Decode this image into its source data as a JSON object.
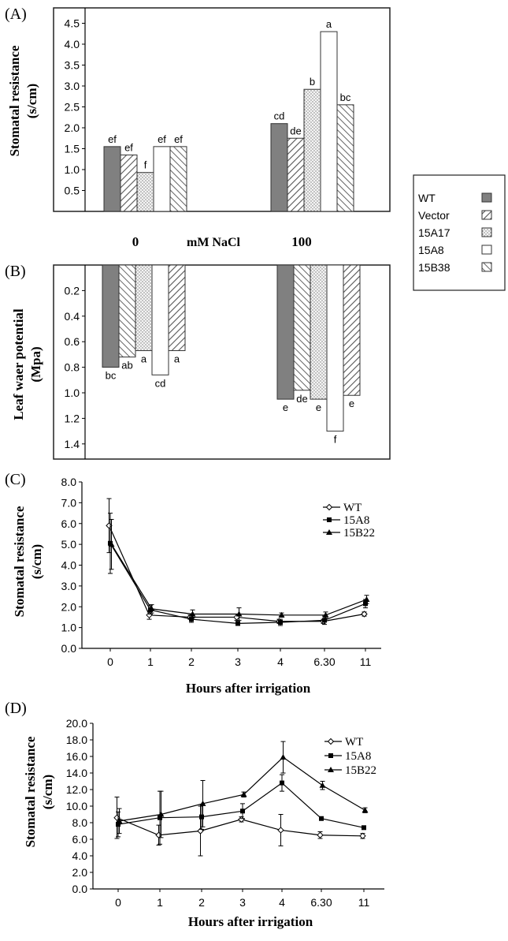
{
  "colors": {
    "wt_fill": "#808080",
    "axis": "#000000",
    "panel_border": "#222222",
    "text": "#111111"
  },
  "chart_data": [
    {
      "panel": "(A)",
      "type": "bar",
      "ylabel_line1": "Stomatal resistance",
      "ylabel_line2": "(s/cm)",
      "ylim": [
        0,
        4.8
      ],
      "yticks": [
        "0.5",
        "1.0",
        "1.5",
        "2.0",
        "2.5",
        "3.0",
        "3.5",
        "4.0",
        "4.5"
      ],
      "categories": [
        "0",
        "100"
      ],
      "xlabel": "mM NaCl",
      "series": [
        {
          "name": "WT",
          "pattern": "solid",
          "values": [
            1.55,
            2.1
          ],
          "letters": [
            "ef",
            "cd"
          ]
        },
        {
          "name": "Vector",
          "pattern": "hatch-right",
          "values": [
            1.35,
            1.75
          ],
          "letters": [
            "ef",
            "de"
          ]
        },
        {
          "name": "15A17",
          "pattern": "dots",
          "values": [
            0.93,
            2.92
          ],
          "letters": [
            "f",
            "b"
          ]
        },
        {
          "name": "15A8",
          "pattern": "white",
          "values": [
            1.55,
            4.3
          ],
          "letters": [
            "ef",
            "a"
          ]
        },
        {
          "name": "15B38",
          "pattern": "hatch-left",
          "values": [
            1.55,
            2.55
          ],
          "letters": [
            "ef",
            "bc"
          ]
        }
      ]
    },
    {
      "panel": "(B)",
      "type": "bar",
      "ylabel_line1": "Leaf waer potential",
      "ylabel_line2": "(Mpa)",
      "ylim": [
        0,
        1.48
      ],
      "inverted": true,
      "yticks": [
        "0.2",
        "0.4",
        "0.6",
        "0.8",
        "1.0",
        "1.2",
        "1.4"
      ],
      "categories": [
        "0",
        "100"
      ],
      "series": [
        {
          "name": "WT",
          "pattern": "solid",
          "values": [
            0.8,
            1.05
          ],
          "letters": [
            "bc",
            "e"
          ]
        },
        {
          "name": "Vector",
          "pattern": "hatch-left",
          "values": [
            0.72,
            0.98
          ],
          "letters": [
            "ab",
            "de"
          ]
        },
        {
          "name": "15A17",
          "pattern": "dots",
          "values": [
            0.67,
            1.05
          ],
          "letters": [
            "a",
            "e"
          ]
        },
        {
          "name": "15A8",
          "pattern": "white",
          "values": [
            0.86,
            1.3
          ],
          "letters": [
            "cd",
            "f"
          ]
        },
        {
          "name": "15B38",
          "pattern": "hatch-right",
          "values": [
            0.67,
            1.02
          ],
          "letters": [
            "a",
            "e"
          ]
        }
      ]
    },
    {
      "panel": "(C)",
      "type": "line",
      "ylabel_line1": "Stomatal resistance",
      "ylabel_line2": "(s/cm)",
      "xlabel": "Hours after irrigation",
      "x": [
        "0",
        "1",
        "2",
        "3",
        "4",
        "6.30",
        "11"
      ],
      "ylim": [
        0,
        8
      ],
      "yticks": [
        "0.0",
        "1.0",
        "2.0",
        "3.0",
        "4.0",
        "5.0",
        "6.0",
        "7.0",
        "8.0"
      ],
      "series": [
        {
          "name": "WT",
          "marker": "diamond-open",
          "values": [
            5.9,
            1.6,
            1.5,
            1.5,
            1.3,
            1.3,
            1.65
          ],
          "errors": [
            1.3,
            0.2,
            0.1,
            0.15,
            0.1,
            0.1,
            0.1
          ]
        },
        {
          "name": "15A8",
          "marker": "square-filled",
          "values": [
            5.05,
            1.85,
            1.4,
            1.2,
            1.25,
            1.35,
            2.15
          ],
          "errors": [
            1.45,
            0.2,
            0.15,
            0.1,
            0.15,
            0.2,
            0.2
          ]
        },
        {
          "name": "15B22",
          "marker": "triangle-filled",
          "values": [
            5.0,
            1.9,
            1.65,
            1.65,
            1.6,
            1.6,
            2.35
          ],
          "errors": [
            1.2,
            0.2,
            0.2,
            0.3,
            0.1,
            0.15,
            0.2
          ]
        }
      ]
    },
    {
      "panel": "(D)",
      "type": "line",
      "ylabel_line1": "Stomatal resistance",
      "ylabel_line2": "(s/cm)",
      "xlabel": "Hours after irrigation",
      "x": [
        "0",
        "1",
        "2",
        "3",
        "4",
        "6.30",
        "11"
      ],
      "ylim": [
        0,
        20
      ],
      "yticks": [
        "0.0",
        "2.0",
        "4.0",
        "6.0",
        "8.0",
        "10.0",
        "12.0",
        "14.0",
        "16.0",
        "18.0",
        "20.0"
      ],
      "series": [
        {
          "name": "WT",
          "marker": "diamond-open",
          "values": [
            8.6,
            6.5,
            7.0,
            8.4,
            7.1,
            6.5,
            6.4
          ],
          "errors": [
            2.5,
            1.2,
            3.0,
            0.3,
            1.9,
            0.4,
            0.3
          ]
        },
        {
          "name": "15A8",
          "marker": "square-filled",
          "values": [
            7.8,
            8.6,
            8.7,
            9.4,
            12.8,
            8.5,
            7.4
          ],
          "errors": [
            1.5,
            3.2,
            1.5,
            0.9,
            1.0,
            0.2,
            0.2
          ]
        },
        {
          "name": "15B22",
          "marker": "triangle-filled",
          "values": [
            8.2,
            9.0,
            10.3,
            11.4,
            15.9,
            12.5,
            9.5
          ],
          "errors": [
            1.5,
            2.8,
            2.8,
            0.3,
            1.9,
            0.5,
            0.3
          ]
        }
      ]
    }
  ]
}
